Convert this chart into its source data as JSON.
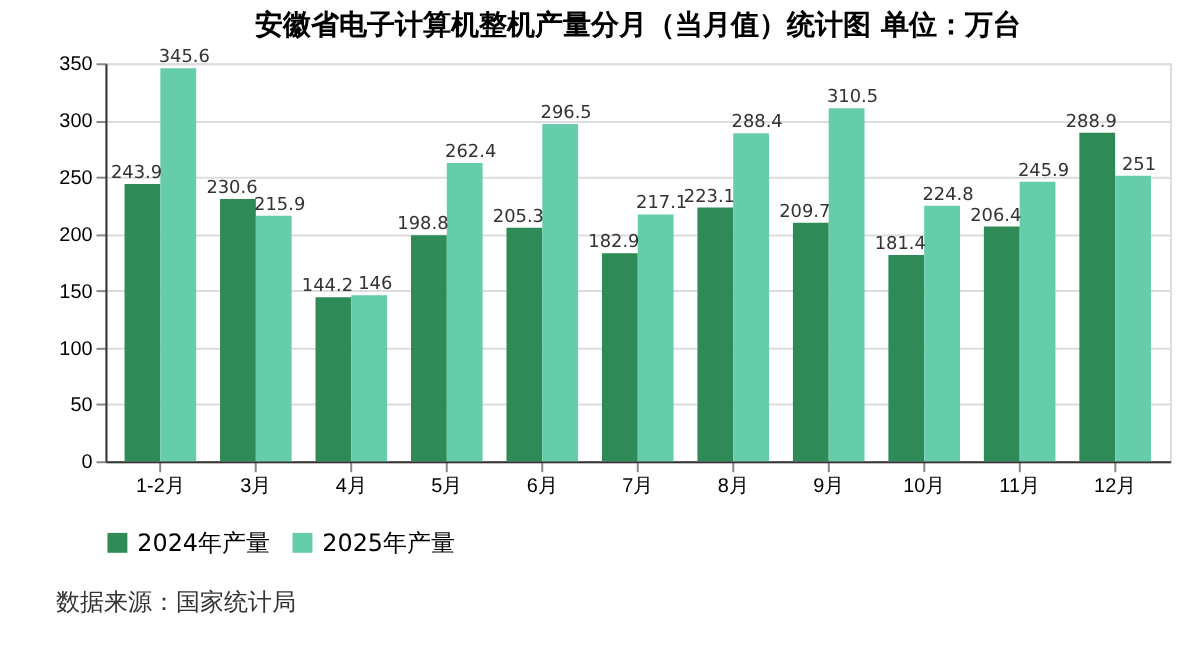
{
  "chart_data": {
    "type": "bar",
    "title": "安徽省电子计算机整机产量分月（当月值）统计图 单位：万台",
    "categories": [
      "1-2月",
      "3月",
      "4月",
      "5月",
      "6月",
      "7月",
      "8月",
      "9月",
      "10月",
      "11月",
      "12月"
    ],
    "series": [
      {
        "name": "2024年产量",
        "color": "#2e8b57",
        "values": [
          243.9,
          230.6,
          144.2,
          198.8,
          205.3,
          182.9,
          223.1,
          209.7,
          181.4,
          206.4,
          288.9
        ]
      },
      {
        "name": "2025年产量",
        "color": "#66cdaa",
        "values": [
          345.6,
          215.9,
          146,
          262.4,
          296.5,
          217.1,
          288.4,
          310.5,
          224.8,
          245.9,
          251
        ]
      }
    ],
    "ylim": [
      0,
      350
    ],
    "yticks": [
      0,
      50,
      100,
      150,
      200,
      250,
      300,
      350
    ],
    "grid": "y",
    "legend": "bottom",
    "data_labels": true,
    "annotations": [
      "数据来源：国家统计局"
    ]
  }
}
